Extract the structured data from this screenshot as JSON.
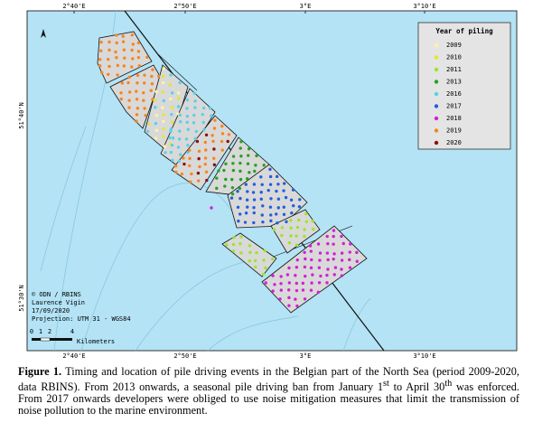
{
  "map": {
    "ticks_top": [
      "2°40'E",
      "2°50'E",
      "3°E",
      "3°10'E"
    ],
    "ticks_bottom": [
      "2°40'E",
      "2°50'E",
      "3°E",
      "3°10'E"
    ],
    "ticks_left": [
      "51°40'N",
      "51°30'N"
    ],
    "credits": [
      "© ODN / RBINS",
      "Laurence Vigin",
      "17/09/2020",
      "Projection: UTM 31 - WGS84"
    ],
    "scale_labels": [
      "0",
      "1",
      "2",
      "4"
    ],
    "scale_unit": "Kilometers",
    "legend": {
      "title": "Year of piling",
      "items": [
        {
          "label": "2009",
          "color": "#fff3a0"
        },
        {
          "label": "2010",
          "color": "#e2e82a"
        },
        {
          "label": "2011",
          "color": "#9ae62b"
        },
        {
          "label": "2013",
          "color": "#1fa51f"
        },
        {
          "label": "2016",
          "color": "#56d2e8"
        },
        {
          "label": "2017",
          "color": "#1f5fe0"
        },
        {
          "label": "2018",
          "color": "#d21fd8"
        },
        {
          "label": "2019",
          "color": "#f5861f"
        },
        {
          "label": "2020",
          "color": "#8a1010"
        }
      ]
    }
  },
  "caption": {
    "label": "Figure 1.",
    "text1": " Timing and location of pile driving events in the Belgian part of the North Sea (period 2009-2020, data RBINS). From 2013 onwards, a seasonal pile driving ban from January 1",
    "sup1": "st",
    "text2": " to April 30",
    "sup2": "th",
    "text3": " was enforced. From 2017 onwards developers were obliged to use noise mitigation measures that limit the transmission of noise pollution to the marine environment."
  }
}
